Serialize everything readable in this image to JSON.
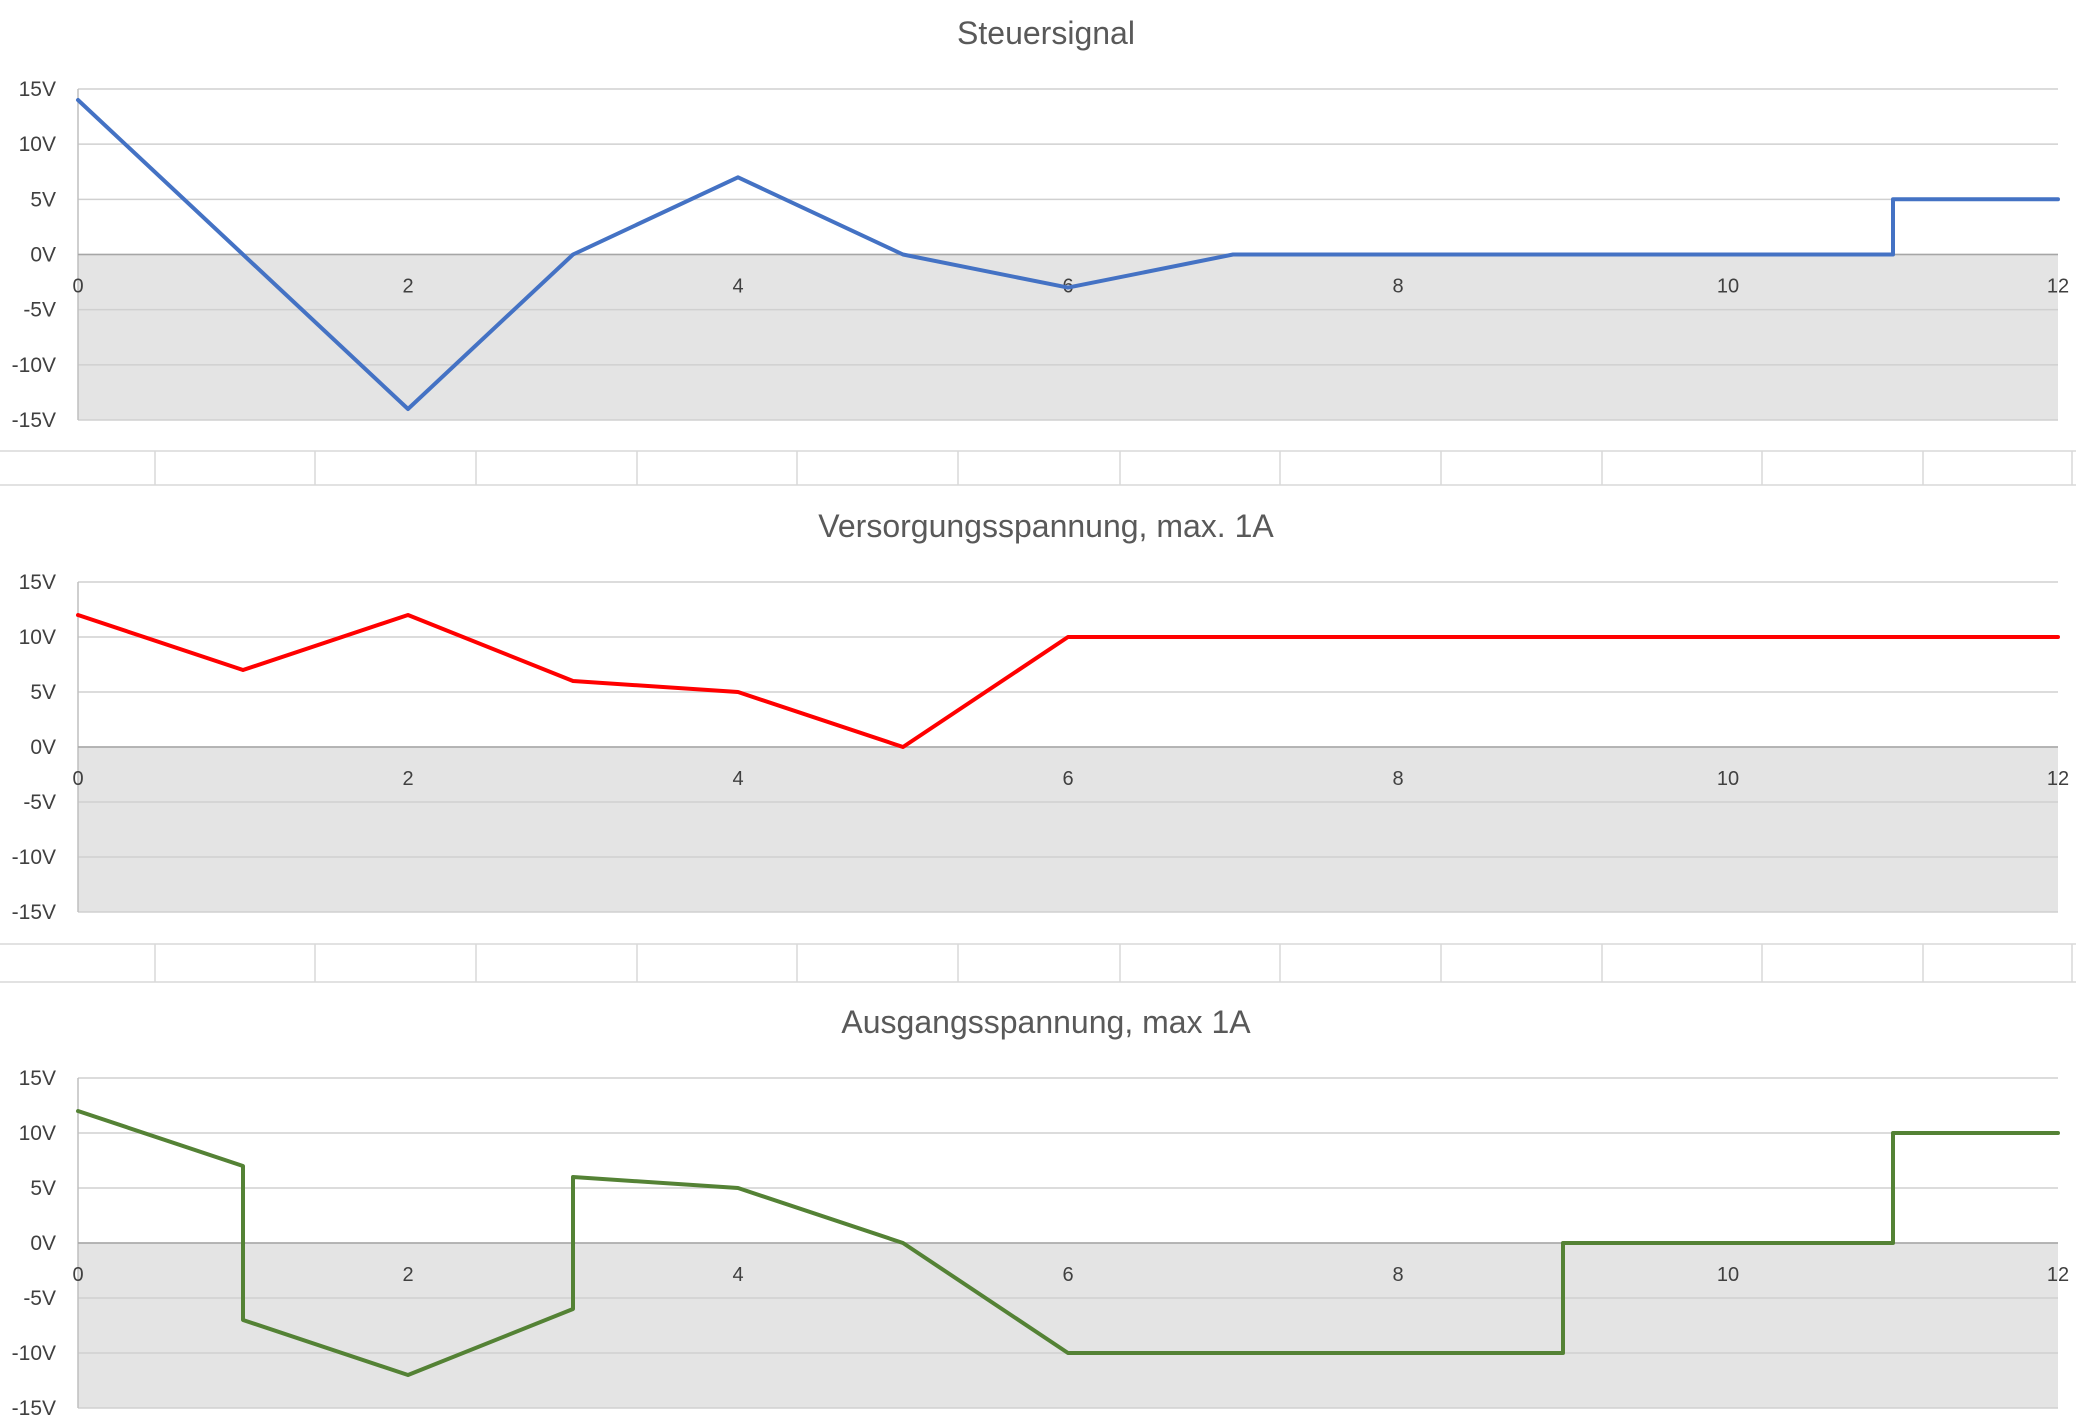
{
  "chart_data": [
    {
      "type": "line",
      "title": "Steuersignal",
      "xlabel": "",
      "ylabel": "",
      "xlim": [
        0,
        12
      ],
      "ylim": [
        -15,
        15
      ],
      "x_ticks": [
        "0",
        "2",
        "4",
        "6",
        "8",
        "10",
        "12"
      ],
      "y_ticks": [
        "15V",
        "10V",
        "5V",
        "0V",
        "-5V",
        "-10V",
        "-15V"
      ],
      "grid": true,
      "negative_region_shaded": true,
      "series": [
        {
          "color": "#4472C4",
          "points": [
            [
              0,
              14
            ],
            [
              1,
              0
            ],
            [
              2,
              -14
            ],
            [
              3,
              0
            ],
            [
              4,
              7
            ],
            [
              5,
              0
            ],
            [
              6,
              -3
            ],
            [
              7,
              0
            ],
            [
              11,
              0
            ],
            [
              11,
              5
            ],
            [
              12,
              5
            ]
          ]
        }
      ]
    },
    {
      "type": "line",
      "title": "Versorgungsspannung, max. 1A",
      "xlabel": "",
      "ylabel": "",
      "xlim": [
        0,
        12
      ],
      "ylim": [
        -15,
        15
      ],
      "x_ticks": [
        "0",
        "2",
        "4",
        "6",
        "8",
        "10",
        "12"
      ],
      "y_ticks": [
        "15V",
        "10V",
        "5V",
        "0V",
        "-5V",
        "-10V",
        "-15V"
      ],
      "grid": true,
      "negative_region_shaded": true,
      "series": [
        {
          "color": "#FF0000",
          "points": [
            [
              0,
              12
            ],
            [
              1,
              7
            ],
            [
              2,
              12
            ],
            [
              3,
              6
            ],
            [
              4,
              5
            ],
            [
              5,
              0
            ],
            [
              6,
              10
            ],
            [
              12,
              10
            ]
          ]
        }
      ]
    },
    {
      "type": "line",
      "title": "Ausgangsspannung, max 1A",
      "xlabel": "",
      "ylabel": "",
      "xlim": [
        0,
        12
      ],
      "ylim": [
        -15,
        15
      ],
      "x_ticks": [
        "0",
        "2",
        "4",
        "6",
        "8",
        "10",
        "12"
      ],
      "y_ticks": [
        "15V",
        "10V",
        "5V",
        "0V",
        "-5V",
        "-10V",
        "-15V"
      ],
      "grid": true,
      "negative_region_shaded": true,
      "series": [
        {
          "color": "#548235",
          "points": [
            [
              0,
              12
            ],
            [
              1,
              7
            ],
            [
              1,
              -7
            ],
            [
              2,
              -12
            ],
            [
              3,
              -6
            ],
            [
              3,
              6
            ],
            [
              4,
              5
            ],
            [
              5,
              0
            ],
            [
              6,
              -10
            ],
            [
              9,
              -10
            ],
            [
              9,
              0
            ],
            [
              11,
              0
            ],
            [
              11,
              10
            ],
            [
              12,
              10
            ]
          ]
        }
      ]
    }
  ]
}
